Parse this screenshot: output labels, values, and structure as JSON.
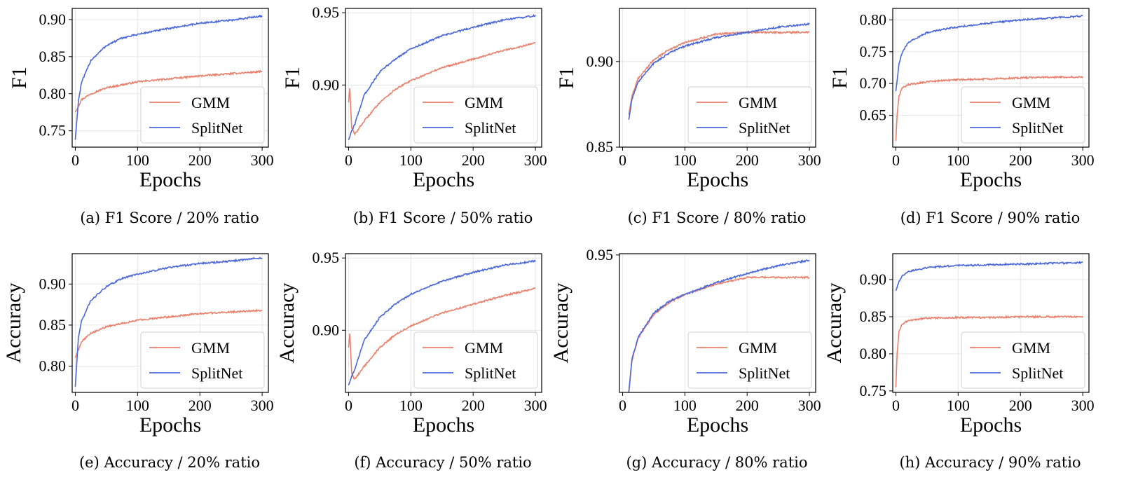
{
  "colors": {
    "GMM": "#e8806c",
    "SplitNet": "#4a67d8",
    "grid": "#e6e6e6"
  },
  "chart_data": [
    {
      "type": "line",
      "caption": "(a) F1 Score / 20% ratio",
      "xlabel": "Epochs",
      "ylabel": "F1",
      "xlim": [
        -5,
        310
      ],
      "ylim": [
        0.728,
        0.915
      ],
      "xticks": [
        0,
        100,
        200,
        300
      ],
      "yticks": [
        0.75,
        0.8,
        0.85,
        0.9
      ],
      "ytick_labels": [
        "0.75",
        "0.80",
        "0.85",
        "0.90"
      ],
      "grid": true,
      "legend": "lower-right",
      "series": [
        {
          "name": "GMM",
          "x": [
            0,
            10,
            25,
            50,
            75,
            100,
            150,
            200,
            250,
            300
          ],
          "y": [
            0.775,
            0.792,
            0.8,
            0.808,
            0.812,
            0.816,
            0.82,
            0.824,
            0.827,
            0.83
          ]
        },
        {
          "name": "SplitNet",
          "x": [
            0,
            5,
            10,
            25,
            50,
            75,
            100,
            150,
            200,
            250,
            300
          ],
          "y": [
            0.738,
            0.79,
            0.815,
            0.845,
            0.865,
            0.875,
            0.88,
            0.888,
            0.895,
            0.899,
            0.905
          ]
        }
      ]
    },
    {
      "type": "line",
      "caption": "(b) F1 Score / 50% ratio",
      "xlabel": "Epochs",
      "ylabel": "F1",
      "xlim": [
        -5,
        310
      ],
      "ylim": [
        0.857,
        0.953
      ],
      "xticks": [
        0,
        100,
        200,
        300
      ],
      "yticks": [
        0.9,
        0.95
      ],
      "ytick_labels": [
        "0.90",
        "0.95"
      ],
      "grid": true,
      "legend": "lower-right",
      "series": [
        {
          "name": "GMM",
          "x": [
            0,
            2,
            5,
            10,
            25,
            50,
            75,
            100,
            150,
            200,
            250,
            300
          ],
          "y": [
            0.888,
            0.898,
            0.87,
            0.866,
            0.875,
            0.888,
            0.897,
            0.903,
            0.912,
            0.918,
            0.924,
            0.929
          ]
        },
        {
          "name": "SplitNet",
          "x": [
            0,
            5,
            10,
            25,
            50,
            75,
            100,
            150,
            200,
            250,
            300
          ],
          "y": [
            0.862,
            0.868,
            0.873,
            0.893,
            0.909,
            0.918,
            0.925,
            0.934,
            0.94,
            0.945,
            0.948
          ]
        }
      ]
    },
    {
      "type": "line",
      "caption": "(c) F1 Score / 80% ratio",
      "xlabel": "Epochs",
      "ylabel": "F1",
      "xlim": [
        -5,
        310
      ],
      "ylim": [
        0.85,
        0.931
      ],
      "xticks": [
        0,
        100,
        200,
        300
      ],
      "yticks": [
        0.85,
        0.9
      ],
      "ytick_labels": [
        "0.85",
        "0.90"
      ],
      "grid": true,
      "legend": "lower-right",
      "series": [
        {
          "name": "GMM",
          "x": [
            10,
            15,
            25,
            50,
            75,
            100,
            150,
            200,
            250,
            300
          ],
          "y": [
            0.869,
            0.88,
            0.89,
            0.901,
            0.907,
            0.911,
            0.916,
            0.917,
            0.917,
            0.917
          ]
        },
        {
          "name": "SplitNet",
          "x": [
            10,
            15,
            25,
            50,
            75,
            100,
            150,
            200,
            250,
            300
          ],
          "y": [
            0.866,
            0.878,
            0.888,
            0.899,
            0.905,
            0.909,
            0.914,
            0.917,
            0.92,
            0.922
          ]
        }
      ]
    },
    {
      "type": "line",
      "caption": "(d) F1 Score / 90% ratio",
      "xlabel": "Epochs",
      "ylabel": "F1",
      "xlim": [
        -5,
        310
      ],
      "ylim": [
        0.6,
        0.818
      ],
      "xticks": [
        0,
        100,
        200,
        300
      ],
      "yticks": [
        0.65,
        0.7,
        0.75,
        0.8
      ],
      "ytick_labels": [
        "0.65",
        "0.70",
        "0.75",
        "0.80"
      ],
      "grid": true,
      "legend": "lower-right",
      "series": [
        {
          "name": "GMM",
          "x": [
            0,
            2,
            5,
            10,
            20,
            50,
            100,
            150,
            200,
            250,
            300
          ],
          "y": [
            0.61,
            0.65,
            0.68,
            0.693,
            0.698,
            0.703,
            0.706,
            0.707,
            0.709,
            0.71,
            0.71
          ]
        },
        {
          "name": "SplitNet",
          "x": [
            0,
            5,
            10,
            20,
            50,
            75,
            100,
            150,
            200,
            250,
            300
          ],
          "y": [
            0.688,
            0.73,
            0.748,
            0.765,
            0.78,
            0.785,
            0.789,
            0.795,
            0.8,
            0.803,
            0.806
          ]
        }
      ]
    },
    {
      "type": "line",
      "caption": "(e) Accuracy / 20% ratio",
      "xlabel": "Epochs",
      "ylabel": "Accuracy",
      "xlim": [
        -5,
        310
      ],
      "ylim": [
        0.768,
        0.937
      ],
      "xticks": [
        0,
        100,
        200,
        300
      ],
      "yticks": [
        0.8,
        0.85,
        0.9
      ],
      "ytick_labels": [
        "0.80",
        "0.85",
        "0.90"
      ],
      "grid": true,
      "legend": "lower-right",
      "series": [
        {
          "name": "GMM",
          "x": [
            0,
            10,
            25,
            50,
            75,
            100,
            150,
            200,
            250,
            300
          ],
          "y": [
            0.81,
            0.83,
            0.84,
            0.848,
            0.852,
            0.856,
            0.86,
            0.864,
            0.866,
            0.868
          ]
        },
        {
          "name": "SplitNet",
          "x": [
            0,
            5,
            10,
            25,
            50,
            75,
            100,
            150,
            200,
            250,
            300
          ],
          "y": [
            0.775,
            0.835,
            0.855,
            0.88,
            0.897,
            0.907,
            0.912,
            0.92,
            0.925,
            0.928,
            0.932
          ]
        }
      ]
    },
    {
      "type": "line",
      "caption": "(f) Accuracy / 50% ratio",
      "xlabel": "Epochs",
      "ylabel": "Accuracy",
      "xlim": [
        -5,
        310
      ],
      "ylim": [
        0.857,
        0.953
      ],
      "xticks": [
        0,
        100,
        200,
        300
      ],
      "yticks": [
        0.9,
        0.95
      ],
      "ytick_labels": [
        "0.90",
        "0.95"
      ],
      "grid": true,
      "legend": "lower-right",
      "series": [
        {
          "name": "GMM",
          "x": [
            0,
            2,
            5,
            10,
            25,
            50,
            75,
            100,
            150,
            200,
            250,
            300
          ],
          "y": [
            0.888,
            0.898,
            0.87,
            0.866,
            0.875,
            0.888,
            0.897,
            0.903,
            0.912,
            0.918,
            0.924,
            0.929
          ]
        },
        {
          "name": "SplitNet",
          "x": [
            0,
            5,
            10,
            25,
            50,
            75,
            100,
            150,
            200,
            250,
            300
          ],
          "y": [
            0.862,
            0.868,
            0.873,
            0.893,
            0.909,
            0.918,
            0.925,
            0.934,
            0.94,
            0.945,
            0.948
          ]
        }
      ]
    },
    {
      "type": "line",
      "caption": "(g) Accuracy / 80% ratio",
      "xlabel": "Epochs",
      "ylabel": "Accuracy",
      "xlim": [
        -5,
        310
      ],
      "ylim": [
        0.846,
        0.951
      ],
      "xticks": [
        0,
        100,
        200,
        300
      ],
      "yticks": [
        0.95
      ],
      "ytick_labels": [
        "0.95"
      ],
      "grid": true,
      "legend": "lower-right",
      "series": [
        {
          "name": "GMM",
          "x": [
            10,
            15,
            25,
            50,
            75,
            100,
            150,
            200,
            250,
            300
          ],
          "y": [
            0.846,
            0.87,
            0.887,
            0.905,
            0.914,
            0.92,
            0.928,
            0.933,
            0.933,
            0.933
          ]
        },
        {
          "name": "SplitNet",
          "x": [
            10,
            15,
            25,
            50,
            75,
            100,
            150,
            200,
            250,
            300
          ],
          "y": [
            0.846,
            0.871,
            0.888,
            0.906,
            0.915,
            0.92,
            0.929,
            0.936,
            0.942,
            0.946
          ]
        }
      ]
    },
    {
      "type": "line",
      "caption": "(h) Accuracy / 90% ratio",
      "xlabel": "Epochs",
      "ylabel": "Accuracy",
      "xlim": [
        -5,
        310
      ],
      "ylim": [
        0.748,
        0.935
      ],
      "xticks": [
        0,
        100,
        200,
        300
      ],
      "yticks": [
        0.75,
        0.8,
        0.85,
        0.9
      ],
      "ytick_labels": [
        "0.75",
        "0.80",
        "0.85",
        "0.90"
      ],
      "grid": true,
      "legend": "lower-right",
      "series": [
        {
          "name": "GMM",
          "x": [
            0,
            2,
            5,
            10,
            20,
            50,
            100,
            150,
            200,
            250,
            300
          ],
          "y": [
            0.755,
            0.8,
            0.83,
            0.84,
            0.845,
            0.848,
            0.849,
            0.849,
            0.85,
            0.85,
            0.85
          ]
        },
        {
          "name": "SplitNet",
          "x": [
            0,
            5,
            10,
            20,
            50,
            75,
            100,
            150,
            200,
            250,
            300
          ],
          "y": [
            0.885,
            0.897,
            0.905,
            0.911,
            0.916,
            0.918,
            0.919,
            0.92,
            0.921,
            0.922,
            0.923
          ]
        }
      ]
    }
  ]
}
